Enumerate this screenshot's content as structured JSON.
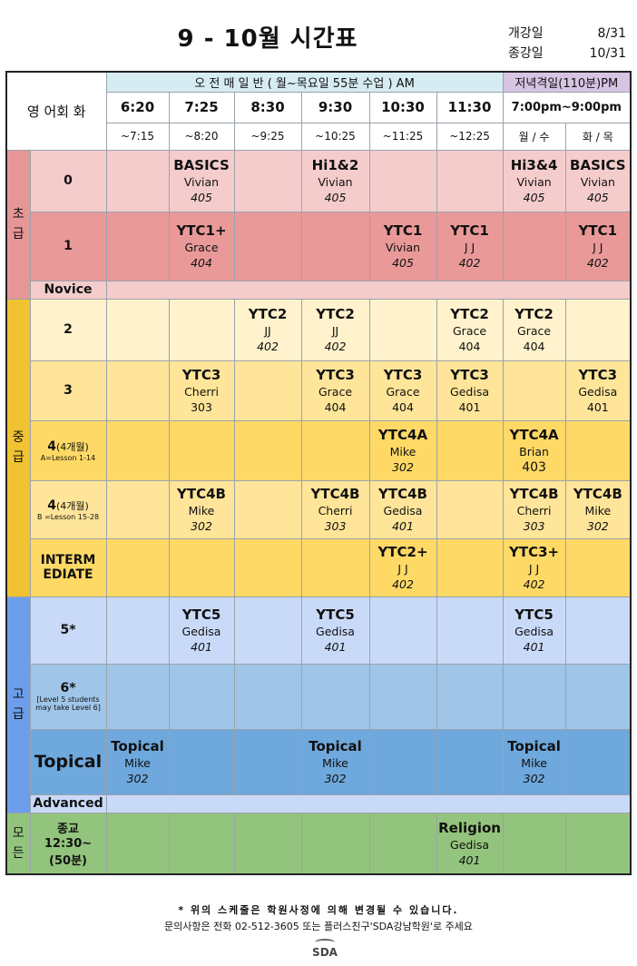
{
  "title": "9 - 10월 시간표",
  "dates": {
    "start_label": "개강일",
    "start_value": "8/31",
    "end_label": "종강일",
    "end_value": "10/31"
  },
  "header": {
    "corner": "영 어회 화",
    "am_banner": "오 전 매 일 반 ( 월~목요일 55분 수업 ) AM",
    "pm_banner": "저녁격일(110분)PM",
    "times": [
      "6:20",
      "7:25",
      "8:30",
      "9:30",
      "10:30",
      "11:30",
      "7:00pm~9:00pm"
    ],
    "ends": [
      "~7:15",
      "~8:20",
      "~9:25",
      "~10:25",
      "~11:25",
      "~12:25",
      "월 / 수",
      "화 / 목"
    ]
  },
  "groups": {
    "beginner": "초\n급",
    "intermediate": "중\n급",
    "advanced": "고\n급",
    "all": "모\n든"
  },
  "rows": [
    {
      "level": "0",
      "cells": [
        null,
        {
          "name": "BASICS",
          "teacher": "Vivian",
          "room": "405"
        },
        null,
        {
          "name": "Hi1&2",
          "teacher": "Vivian",
          "room": "405"
        },
        null,
        null,
        {
          "name": "Hi3&4",
          "teacher": "Vivian",
          "room": "405"
        },
        {
          "name": "BASICS",
          "teacher": "Vivian",
          "room": "405"
        }
      ]
    },
    {
      "level": "1",
      "cells": [
        null,
        {
          "name": "YTC1+",
          "teacher": "Grace",
          "room": "404"
        },
        null,
        null,
        {
          "name": "YTC1",
          "teacher": "Vivian",
          "room": "405"
        },
        {
          "name": "YTC1",
          "teacher": "J J",
          "room": "402"
        },
        null,
        {
          "name": "YTC1",
          "teacher": "J J",
          "room": "402"
        }
      ]
    },
    {
      "level": "Novice"
    },
    {
      "level": "2",
      "cells": [
        null,
        null,
        {
          "name": "YTC2",
          "teacher": "JJ",
          "room": "402"
        },
        {
          "name": "YTC2",
          "teacher": "JJ",
          "room": "402"
        },
        null,
        {
          "name": "YTC2",
          "teacher": "Grace",
          "room": "404"
        },
        {
          "name": "YTC2",
          "teacher": "Grace",
          "room": "404"
        },
        null
      ]
    },
    {
      "level": "3",
      "cells": [
        null,
        {
          "name": "YTC3",
          "teacher": "Cherri",
          "room": "303"
        },
        null,
        {
          "name": "YTC3",
          "teacher": "Grace",
          "room": "404"
        },
        {
          "name": "YTC3",
          "teacher": "Grace",
          "room": "404"
        },
        {
          "name": "YTC3",
          "teacher": "Gedisa",
          "room": "401"
        },
        null,
        {
          "name": "YTC3",
          "teacher": "Gedisa",
          "room": "401"
        }
      ]
    },
    {
      "level": "4",
      "level_suffix": "(4개월)",
      "level_sub": "A=Lesson 1-14",
      "cells": [
        null,
        null,
        null,
        null,
        {
          "name": "YTC4A",
          "teacher": "Mike",
          "room": "302"
        },
        null,
        {
          "name": "YTC4A",
          "teacher": "Brian",
          "room": "403"
        },
        null
      ]
    },
    {
      "level": "4",
      "level_suffix": "(4개월)",
      "level_sub": "B =Lesson 15-28",
      "cells": [
        null,
        {
          "name": "YTC4B",
          "teacher": "Mike",
          "room": "302"
        },
        null,
        {
          "name": "YTC4B",
          "teacher": "Cherri",
          "room": "303"
        },
        {
          "name": "YTC4B",
          "teacher": "Gedisa",
          "room": "401"
        },
        null,
        {
          "name": "YTC4B",
          "teacher": "Cherri",
          "room": "303"
        },
        {
          "name": "YTC4B",
          "teacher": "Mike",
          "room": "302"
        }
      ]
    },
    {
      "level": "INTERM\nEDIATE",
      "cells": [
        null,
        null,
        null,
        null,
        {
          "name": "YTC2+",
          "teacher": "J J",
          "room": "402"
        },
        null,
        {
          "name": "YTC3+",
          "teacher": "J J",
          "room": "402"
        },
        null
      ]
    },
    {
      "level": "5*",
      "cells": [
        null,
        {
          "name": "YTC5",
          "teacher": "Gedisa",
          "room": "401"
        },
        null,
        {
          "name": "YTC5",
          "teacher": "Gedisa",
          "room": "401"
        },
        null,
        null,
        {
          "name": "YTC5",
          "teacher": "Gedisa",
          "room": "401"
        },
        null
      ]
    },
    {
      "level": "6*",
      "level_sub": "[Level 5 students may take Level 6]",
      "cells": [
        null,
        null,
        null,
        null,
        null,
        null,
        null,
        null
      ]
    },
    {
      "level": "Topical",
      "cells": [
        {
          "name": "Topical",
          "teacher": "Mike",
          "room": "302"
        },
        null,
        null,
        {
          "name": "Topical",
          "teacher": "Mike",
          "room": "302"
        },
        null,
        null,
        {
          "name": "Topical",
          "teacher": "Mike",
          "room": "302"
        },
        null
      ]
    },
    {
      "level": "Advanced"
    },
    {
      "level": "종교\n12:30~\n(50분)",
      "cells": [
        null,
        null,
        null,
        null,
        null,
        {
          "name": "Religion",
          "teacher": "Gedisa",
          "room": "401"
        },
        null,
        null
      ]
    }
  ],
  "footer": {
    "notice": "* 위의 스케줄은 학원사정에 의해 변경될 수 있습니다.",
    "contact": "문의사항은 전화 02-512-3605 또는 플러스친구'SDA강남학원'로 주세요",
    "logo": "SDA"
  }
}
